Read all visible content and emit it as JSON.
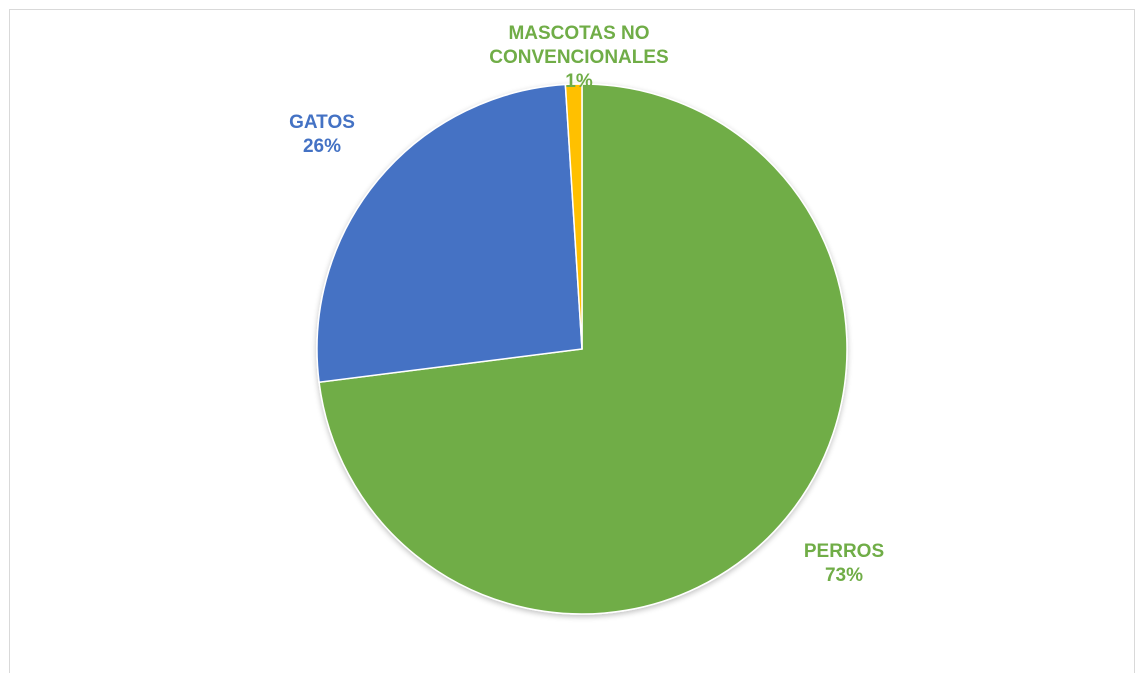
{
  "chart_data": {
    "type": "pie",
    "title": "",
    "slices": [
      {
        "label": "PERROS",
        "value": 73,
        "display": "73%",
        "color": "#70ad47"
      },
      {
        "label": "GATOS",
        "value": 26,
        "display": "26%",
        "color": "#4472c4"
      },
      {
        "label": "MASCOTAS NO CONVENCIONALES",
        "label_line1": "MASCOTAS NO",
        "label_line2": "CONVENCIONALES",
        "value": 1,
        "display": "1%",
        "color": "#ffc000"
      }
    ],
    "label_colors": {
      "PERROS": "#70ad47",
      "GATOS": "#4472c4",
      "MASCOTAS NO CONVENCIONALES": "#70ad47"
    },
    "legend": "none"
  }
}
